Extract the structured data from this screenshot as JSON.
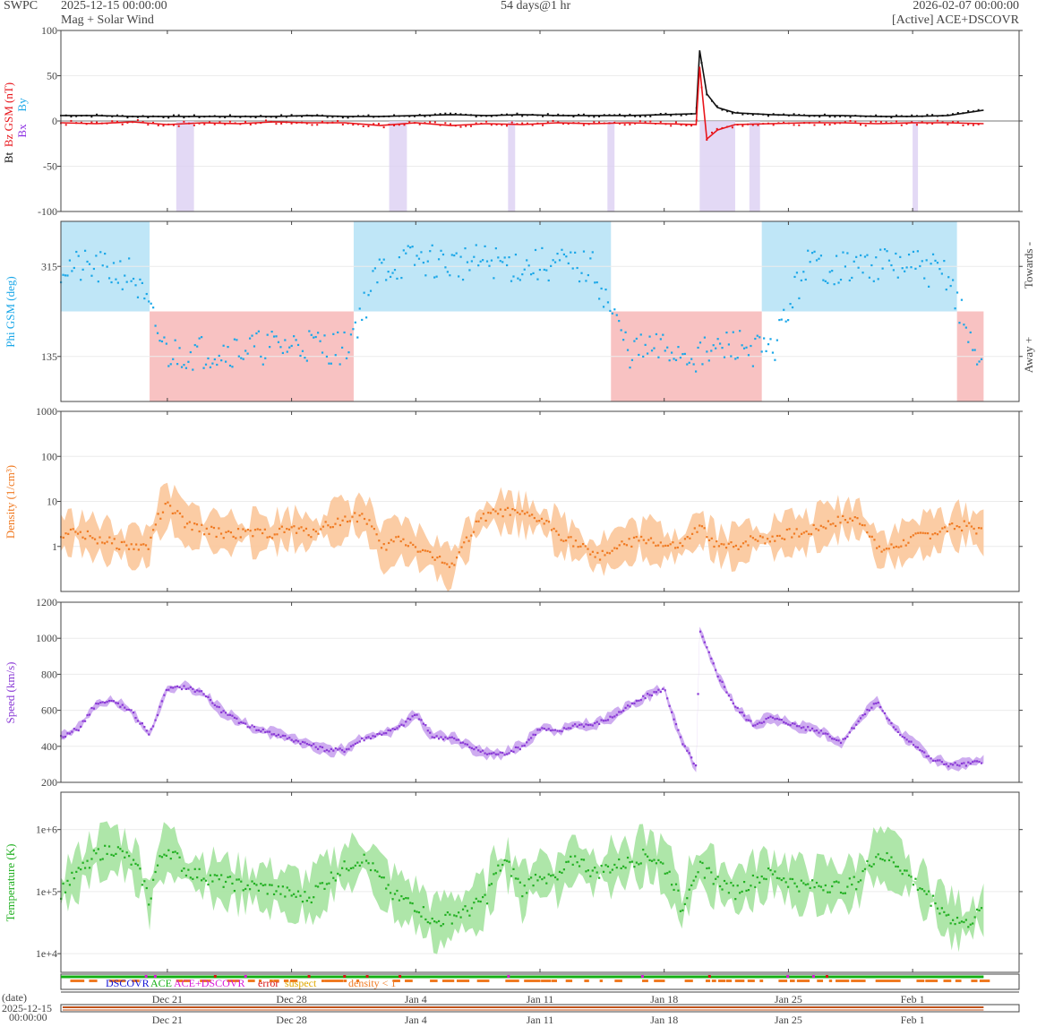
{
  "header": {
    "org": "SWPC",
    "start": "2025-12-15 00:00:00",
    "subtitle": "Mag + Solar Wind",
    "span": "54 days@1 hr",
    "end": "2026-02-07 00:00:00",
    "source": "[Active] ACE+DSCOVR"
  },
  "colors": {
    "bt": "#111111",
    "bz": "#e8151b",
    "bx": "#8a2be2",
    "by": "#1aa7e8",
    "phi": "#1aa7e8",
    "towards_fill": "#bfe6f7",
    "away_fill": "#f8c2c2",
    "density": "#f07a22",
    "density_fill": "#fbc79a",
    "speed": "#8a3ad6",
    "speed_fill": "#c9a3ee",
    "temp": "#22b022",
    "temp_fill": "#a5e3a0",
    "dscovr": "#1515d6",
    "ace": "#14b014",
    "ace_dscovr": "#d81ad8",
    "error": "#d81515",
    "suspect": "#e0a800",
    "density_lt1": "#f07a22"
  },
  "x_ticks": [
    "Dec 21",
    "Dec 28",
    "Jan 4",
    "Jan 11",
    "Jan 18",
    "Jan 25",
    "Feb 1"
  ],
  "x_tick_days": [
    6,
    13,
    20,
    27,
    34,
    41,
    48
  ],
  "x_range_days": [
    0,
    54
  ],
  "date_label": "(date)",
  "date_start_1": "2025-12-15",
  "date_start_2": "00:00:00",
  "legend": {
    "dscovr": "DSCOVR",
    "ace": "ACE",
    "ace_dscovr": "ACE+DSCOVR",
    "error": "error",
    "suspect": "suspect",
    "density": "density < 1"
  },
  "chart_data": [
    {
      "type": "line",
      "panel": "mag",
      "ylabel_bt": "Bt",
      "ylabel_bz": "Bz GSM (nT)",
      "ylabel_bx": "Bx",
      "ylabel_by": "By",
      "ylim": [
        -100,
        100
      ],
      "yticks": [
        100,
        50,
        0,
        -50,
        -100
      ],
      "x_days": [
        0,
        2,
        4,
        6,
        8,
        10,
        12,
        14,
        16,
        18,
        20,
        22,
        24,
        26,
        28,
        30,
        32,
        34,
        35.8,
        36,
        36.4,
        37,
        38,
        40,
        42,
        44,
        46,
        48,
        50,
        52
      ],
      "series": [
        {
          "name": "Bt",
          "values": [
            6,
            6,
            5,
            5,
            5,
            5,
            5,
            6,
            5,
            5,
            6,
            7,
            6,
            7,
            6,
            6,
            6,
            7,
            8,
            78,
            30,
            15,
            9,
            7,
            6,
            6,
            5,
            5,
            6,
            12
          ]
        },
        {
          "name": "Bz",
          "values": [
            -2,
            -3,
            -1,
            -4,
            -2,
            -3,
            -1,
            -2,
            -2,
            -5,
            -2,
            -5,
            -3,
            -4,
            -2,
            -3,
            -2,
            -3,
            -4,
            60,
            -20,
            -10,
            -4,
            -3,
            -2,
            -2,
            -3,
            -2,
            -2,
            -3
          ]
        }
      ]
    },
    {
      "type": "scatter",
      "panel": "phi",
      "ylabel": "Phi GSM (deg)",
      "right_label_top": "Towards -",
      "right_label_bottom": "Away +",
      "yticks": [
        315,
        135
      ],
      "ylim": [
        45,
        405
      ],
      "sector_intervals": [
        {
          "from": 0,
          "to": 5,
          "sector": "towards"
        },
        {
          "from": 5,
          "to": 16.5,
          "sector": "away"
        },
        {
          "from": 16.5,
          "to": 31,
          "sector": "towards"
        },
        {
          "from": 31,
          "to": 39.5,
          "sector": "away"
        },
        {
          "from": 39.5,
          "to": 50.5,
          "sector": "towards"
        },
        {
          "from": 50.5,
          "to": 52,
          "sector": "away"
        }
      ],
      "x_days": [
        0,
        2,
        4,
        6,
        8,
        10,
        12,
        14,
        16,
        18,
        20,
        22,
        24,
        26,
        28,
        30,
        32,
        34,
        36,
        38,
        40,
        42,
        44,
        46,
        48,
        50,
        51.5
      ],
      "values": [
        315,
        310,
        300,
        140,
        145,
        150,
        155,
        160,
        150,
        310,
        330,
        320,
        325,
        315,
        320,
        310,
        145,
        150,
        135,
        160,
        140,
        320,
        310,
        320,
        315,
        300,
        135
      ]
    },
    {
      "type": "area",
      "panel": "density",
      "ylabel": "Density (1/cm³)",
      "scale": "log",
      "ylim": [
        0.1,
        1000
      ],
      "yticks": [
        "1000",
        "100",
        "10",
        "1"
      ],
      "x_days": [
        0,
        1,
        2,
        3,
        4,
        5,
        6,
        7,
        8,
        9,
        10,
        11,
        12,
        13,
        14,
        15,
        16,
        17,
        18,
        19,
        20,
        21,
        22,
        23,
        24,
        25,
        26,
        27,
        28,
        29,
        30,
        31,
        32,
        33,
        34,
        35,
        36,
        37,
        38,
        39,
        40,
        41,
        42,
        43,
        44,
        45,
        46,
        47,
        48,
        49,
        50,
        51,
        52
      ],
      "values": [
        2,
        2,
        1.5,
        1.2,
        1,
        1,
        8,
        3,
        2.5,
        2,
        2,
        2,
        2,
        2.5,
        2,
        3,
        4,
        5,
        0.8,
        1.5,
        1,
        0.6,
        0.3,
        1.5,
        5,
        6,
        5,
        4,
        2,
        1.2,
        0.6,
        0.8,
        1.2,
        1.5,
        1,
        1,
        2.5,
        1,
        1,
        1.5,
        1.5,
        2,
        2,
        3,
        4,
        4,
        0.8,
        1,
        1.5,
        2,
        2.5,
        3,
        2
      ]
    },
    {
      "type": "area",
      "panel": "speed",
      "ylabel": "Speed (km/s)",
      "ylim": [
        200,
        1200
      ],
      "yticks": [
        1200,
        1000,
        800,
        600,
        400,
        200
      ],
      "x_days": [
        0,
        1,
        2,
        3,
        4,
        5,
        6,
        7,
        8,
        9,
        10,
        11,
        12,
        13,
        14,
        15,
        16,
        17,
        18,
        19,
        20,
        21,
        22,
        23,
        24,
        25,
        26,
        27,
        28,
        29,
        30,
        31,
        32,
        33,
        34,
        35,
        35.8,
        36,
        37,
        38,
        39,
        40,
        41,
        42,
        43,
        44,
        45,
        46,
        47,
        48,
        49,
        50,
        51,
        52
      ],
      "values": [
        450,
        500,
        640,
        650,
        590,
        470,
        720,
        730,
        700,
        600,
        540,
        500,
        470,
        440,
        410,
        380,
        380,
        440,
        470,
        500,
        580,
        450,
        450,
        400,
        360,
        360,
        400,
        500,
        480,
        520,
        520,
        560,
        620,
        680,
        720,
        420,
        290,
        1040,
        800,
        620,
        520,
        560,
        530,
        500,
        480,
        420,
        550,
        650,
        490,
        420,
        330,
        300,
        300,
        320
      ]
    },
    {
      "type": "area",
      "panel": "temperature",
      "ylabel": "Temperature (K)",
      "scale": "log",
      "ylim": [
        5000,
        4000000
      ],
      "yticks": [
        "1e+6",
        "1e+5",
        "1e+4"
      ],
      "x_days": [
        0,
        1,
        2,
        3,
        4,
        5,
        6,
        7,
        8,
        9,
        10,
        11,
        12,
        13,
        14,
        15,
        16,
        17,
        18,
        19,
        20,
        21,
        22,
        23,
        24,
        25,
        26,
        27,
        28,
        29,
        30,
        31,
        32,
        33,
        34,
        35,
        36,
        37,
        38,
        39,
        40,
        41,
        42,
        43,
        44,
        45,
        46,
        47,
        48,
        49,
        50,
        51,
        52
      ],
      "values": [
        100000,
        200000,
        400000,
        500000,
        300000,
        60000,
        500000,
        220000,
        180000,
        150000,
        130000,
        120000,
        110000,
        90000,
        80000,
        150000,
        250000,
        350000,
        150000,
        80000,
        60000,
        30000,
        40000,
        50000,
        80000,
        300000,
        100000,
        200000,
        150000,
        350000,
        200000,
        250000,
        300000,
        400000,
        250000,
        40000,
        250000,
        150000,
        100000,
        150000,
        200000,
        150000,
        120000,
        130000,
        120000,
        150000,
        400000,
        300000,
        150000,
        80000,
        40000,
        30000,
        50000
      ]
    }
  ]
}
